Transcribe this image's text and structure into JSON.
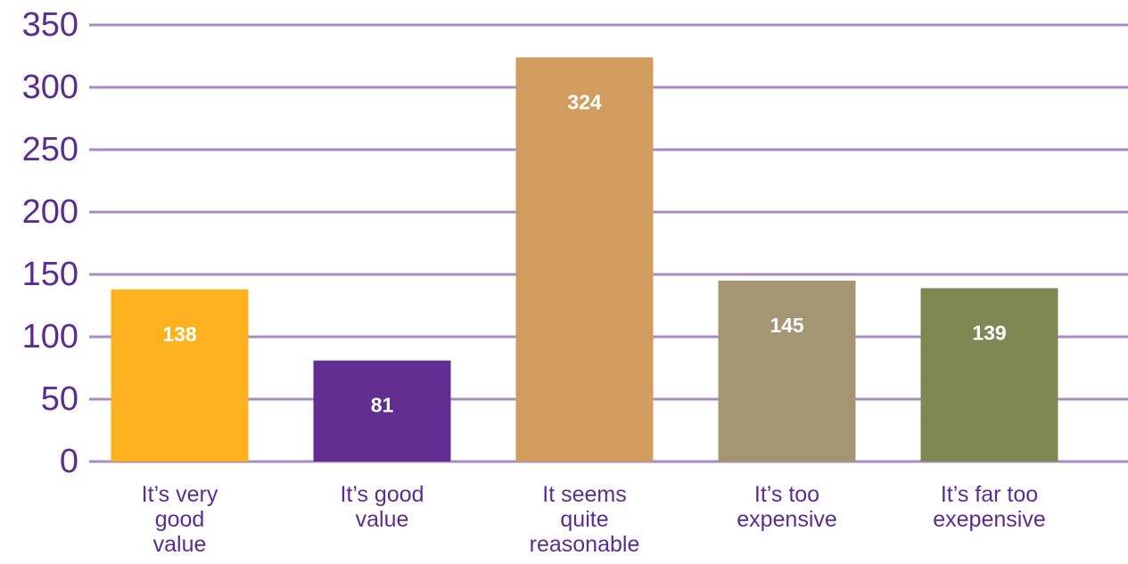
{
  "chart_data": {
    "type": "bar",
    "categories": [
      [
        "It’s very",
        "good",
        "value"
      ],
      [
        "It’s good",
        "value"
      ],
      [
        "It seems",
        "quite",
        "reasonable"
      ],
      [
        "It’s too",
        "expensive"
      ],
      [
        "It’s far too",
        "exepensive"
      ]
    ],
    "values": [
      138,
      81,
      324,
      145,
      139
    ],
    "data_labels": [
      "138",
      "81",
      "324",
      "145",
      "139"
    ],
    "bar_colors": [
      "#fcb11f",
      "#622d91",
      "#d29c5e",
      "#a59673",
      "#7e8853"
    ],
    "yticks": [
      "0",
      "50",
      "100",
      "150",
      "200",
      "250",
      "300",
      "350"
    ],
    "ylim": [
      0,
      350
    ],
    "grid": true,
    "grid_color": "#a98bc4",
    "axis_text_color": "#5c2d91",
    "data_label_color": "#ffffff"
  }
}
